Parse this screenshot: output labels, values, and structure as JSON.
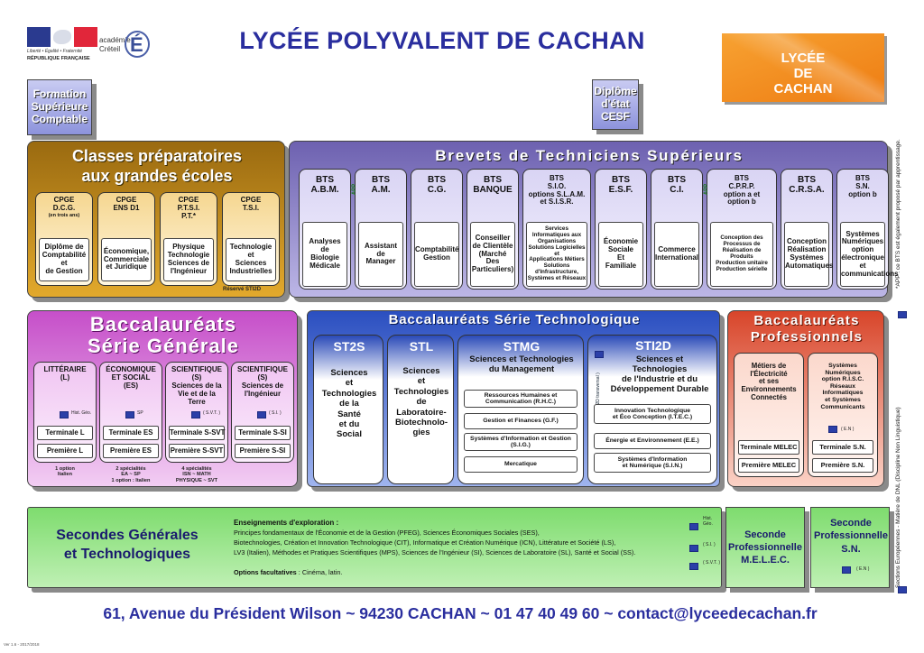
{
  "header": {
    "title": "LYCÉE POLYVALENT DE CACHAN",
    "logo_rf_line1": "Liberté • Égalité • Fraternité",
    "logo_rf_line2": "RÉPUBLIQUE FRANÇAISE",
    "logo_academie_1": "académie",
    "logo_academie_2": "Créteil",
    "logo_academie_letter": "É",
    "badge_lines": [
      "LYCÉE",
      "DE",
      "CACHAN"
    ],
    "colors": {
      "title": "#2a2e9e",
      "badge": "#f28a1e"
    }
  },
  "top_boxes": {
    "formation": [
      "Formation",
      "Supérieure",
      "Comptable"
    ],
    "diplome": [
      "Diplôme",
      "d'état",
      "CESF"
    ]
  },
  "cpge": {
    "title_1": "Classes préparatoires",
    "title_2": "aux grandes écoles",
    "cols": [
      {
        "head": [
          "CPGE",
          "D.C.G."
        ],
        "note": "(en trois ans)",
        "body": [
          "Diplôme de",
          "Comptabilité et",
          "de Gestion"
        ]
      },
      {
        "head": [
          "CPGE",
          "ENS D1"
        ],
        "note": "",
        "body": [
          "Économique,",
          "Commerciale",
          "et Juridique"
        ]
      },
      {
        "head": [
          "CPGE",
          "P.T.S.I.",
          "P.T.*"
        ],
        "note": "",
        "body": [
          "Physique",
          "Technologie",
          "Sciences de",
          "l'Ingénieur"
        ]
      },
      {
        "head": [
          "CPGE",
          "T.S.I."
        ],
        "note": "",
        "body": [
          "Technologie et",
          "Sciences",
          "Industrielles"
        ]
      }
    ],
    "footnote": "Réservé STI2D"
  },
  "bts": {
    "title": "Brevets de Techniciens Supérieurs",
    "app": "APP",
    "cols": [
      {
        "head": [
          "BTS",
          "A.B.M."
        ],
        "body": [
          "Analyses",
          "de",
          "Biologie",
          "Médicale"
        ]
      },
      {
        "head": [
          "BTS",
          "A.M."
        ],
        "body": [
          "Assistant",
          "de",
          "Manager"
        ]
      },
      {
        "head": [
          "BTS",
          "C.G."
        ],
        "body": [
          "Comptabilité",
          "Gestion"
        ]
      },
      {
        "head": [
          "BTS",
          "BANQUE"
        ],
        "body": [
          "Conseiller",
          "de Clientèle",
          "(Marché",
          "Des",
          "Particuliers)"
        ]
      },
      {
        "head": [
          "BTS",
          "S.I.O.",
          "options S.L.A.M.",
          "et S.I.S.R."
        ],
        "body": [
          "Services",
          "Informatiques aux",
          "Organisations",
          "Solutions Logicielles et",
          "Applications Métiers",
          "Solutions d'Infrastructure,",
          "Systèmes et Réseaux"
        ]
      },
      {
        "head": [
          "BTS",
          "E.S.F."
        ],
        "body": [
          "Économie",
          "Sociale",
          "Et",
          "Familiale"
        ]
      },
      {
        "head": [
          "BTS",
          "C.I."
        ],
        "body": [
          "Commerce",
          "International"
        ]
      },
      {
        "head": [
          "BTS",
          "C.P.R.P.",
          "option a et",
          "option b"
        ],
        "body": [
          "Conception des",
          "Processus de",
          "Réalisation de",
          "Produits",
          "Production unitaire",
          "Production sérielle"
        ]
      },
      {
        "head": [
          "BTS",
          "C.R.S.A."
        ],
        "body": [
          "Conception",
          "Réalisation",
          "Systèmes",
          "Automatiques"
        ]
      },
      {
        "head": [
          "BTS",
          "S.N.",
          "option b"
        ],
        "body": [
          "Systèmes",
          "Numériques",
          "option",
          "électronique et",
          "communications"
        ]
      }
    ]
  },
  "side_note_1": "*APP : ce BTS est également proposé par apprentissage.",
  "side_note_2": "Sections Européennes - Matière de DNL (Discipline Non Linguistique)",
  "bac_gen": {
    "title_1": "Baccalauréats",
    "title_2": "Série Générale",
    "cols": [
      {
        "head": [
          "LITTÉRAIRE",
          "(L)"
        ],
        "tag": "Hist. Géo.",
        "t": "Terminale L",
        "p": "Première L",
        "note": [
          "1 option",
          "Italien"
        ]
      },
      {
        "head": [
          "ÉCONOMIQUE",
          "ET SOCIAL",
          "(ES)"
        ],
        "tag": "SP",
        "t": "Terminale ES",
        "p": "Première ES",
        "note": [
          "2 spécialités",
          "EA ~ SP",
          "1 option : Italien"
        ]
      },
      {
        "head": [
          "SCIENTIFIQUE",
          "(S)",
          "Sciences de la",
          "Vie et de la",
          "Terre"
        ],
        "tag": "( S.V.T. )",
        "t": "Terminale S-SVT",
        "p": "Première S-SVT",
        "note": [
          "4 spécialités",
          "ISN ~ MATH",
          "PHYSIQUE ~ SVT"
        ]
      },
      {
        "head": [
          "SCIENTIFIQUE",
          "(S)",
          "Sciences de",
          "l'Ingénieur"
        ],
        "tag": "( S.I. )",
        "t": "Terminale S-SI",
        "p": "Première S-SI",
        "note": []
      }
    ]
  },
  "bac_tech": {
    "title": "Baccalauréats Série Technologique",
    "st2s": {
      "title": "ST2S",
      "body": [
        "Sciences",
        "et",
        "Technologies",
        "de la",
        "Santé",
        "et du",
        "Social"
      ]
    },
    "stl": {
      "title": "STL",
      "body": [
        "Sciences",
        "et",
        "Technologies",
        "de",
        "Laboratoire-",
        "Biotechnolo-",
        "gies"
      ]
    },
    "stmg": {
      "title": "STMG",
      "sub": [
        "Sciences et Technologies",
        "du Management"
      ],
      "items": [
        [
          "Ressources Humaines et",
          "Communication (R.H.C.)"
        ],
        [
          "Gestion et Finances (G.F.)"
        ],
        [
          "Systèmes d'Information et Gestion",
          "(S.I.G.)"
        ],
        [
          "Mercatique"
        ]
      ]
    },
    "sti2d": {
      "title": "STI2D",
      "sub": [
        "Sciences et",
        "Technologies",
        "de l'Industrie et du",
        "Développement Durable"
      ],
      "vtag": "( ST2D transversal )",
      "items": [
        [
          "Innovation Technologique",
          "et Éco Conception (I.T.E.C.)"
        ],
        [
          "Énergie et Environnement  (E.E.)"
        ],
        [
          "Systèmes d'Information",
          "et Numérique (S.I.N.)"
        ]
      ]
    }
  },
  "bac_pro": {
    "title_1": "Baccalauréats",
    "title_2": "Professionnels",
    "cols": [
      {
        "head": [
          "Métiers de",
          "l'Électricité",
          "et ses",
          "Environnements",
          "Connectés"
        ],
        "tag": "",
        "t": "Terminale MELEC",
        "p": "Première MELEC"
      },
      {
        "head": [
          "Systèmes",
          "Numériques",
          "option R.I.S.C.",
          "Réseaux",
          "Informatiques",
          "et Systèmes",
          "Communicants"
        ],
        "tag": "( E.N )",
        "t": "Terminale S.N.",
        "p": "Première S.N."
      }
    ]
  },
  "secondes": {
    "title_1": "Secondes Générales",
    "title_2": "et Technologiques",
    "expl_title": "Enseignements d'exploration :",
    "expl_lines": [
      "Principes fondamentaux de l'Économie et de la Gestion (PFEG), Sciences Économiques Sociales (SES),",
      "Biotechnologies, Création et Innovation Technologique (CIT), Informatique et Création Numérique  (ICN), Littérature et Société (LS),",
      "LV3 (Italien), Méthodes et Pratiques Scientifiques (MPS), Sciences de l'Ingénieur (SI), Sciences de Laboratoire (SL), Santé et Social (SS)."
    ],
    "opt_label": "Options facultatives",
    "opt_value": " : Cinéma, latin.",
    "tags": [
      "Hist. Géo.",
      "( S.I. )",
      "( S.V.T. )"
    ]
  },
  "seconde_melec": [
    "Seconde",
    "Professionnelle",
    "M.E.L.E.C."
  ],
  "seconde_sn": {
    "lines": [
      "Seconde",
      "Professionnelle",
      "S.N."
    ],
    "tag": "( E.N )"
  },
  "footer": {
    "address": "61, Avenue du Président Wilson ~ 94230 CACHAN ~ 01 47 40 49 60 ~ contact@lyceedecachan.fr",
    "version": "Ver 1.6 - 2017/2018"
  }
}
